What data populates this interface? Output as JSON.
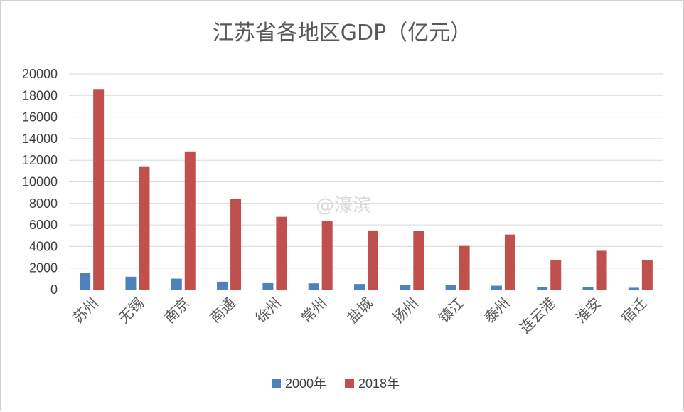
{
  "chart_data": {
    "type": "bar",
    "title": "江苏省各地区GDP（亿元）",
    "xlabel": "",
    "ylabel": "",
    "ylim": [
      0,
      20000
    ],
    "yticks": [
      0,
      2000,
      4000,
      6000,
      8000,
      10000,
      12000,
      14000,
      16000,
      18000,
      20000
    ],
    "grid": true,
    "legend_position": "bottom",
    "categories": [
      "苏州",
      "无锡",
      "南京",
      "南通",
      "徐州",
      "常州",
      "盐城",
      "扬州",
      "镇江",
      "泰州",
      "连云港",
      "淮安",
      "宿迁"
    ],
    "series": [
      {
        "name": "2000年",
        "color": "#4f81bd",
        "values": [
          1541,
          1200,
          1021,
          735,
          600,
          580,
          520,
          455,
          450,
          360,
          250,
          250,
          170
        ]
      },
      {
        "name": "2018年",
        "color": "#c0504d",
        "values": [
          18597,
          11439,
          12820,
          8427,
          6755,
          6400,
          5487,
          5466,
          4050,
          5108,
          2771,
          3601,
          2750
        ]
      }
    ]
  },
  "watermark": "@濠滨"
}
